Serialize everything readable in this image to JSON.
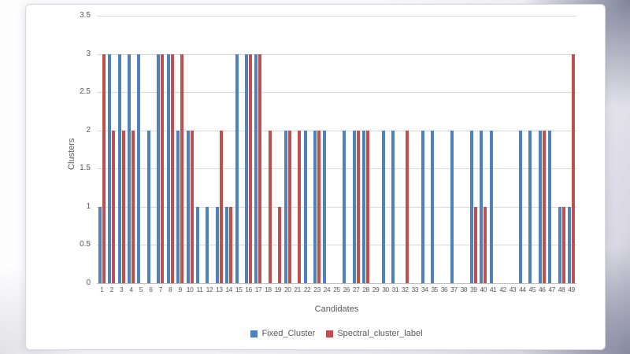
{
  "chart_data": {
    "type": "bar",
    "title": "",
    "xlabel": "Candidates",
    "ylabel": "Clusters",
    "ylim": [
      0,
      3.5
    ],
    "ytick_labels": [
      "3.5",
      "3",
      "2.5",
      "2",
      "1.5",
      "1",
      "0.5",
      "0"
    ],
    "grid": true,
    "legend_position": "bottom",
    "categories": [
      "1",
      "2",
      "3",
      "4",
      "5",
      "6",
      "7",
      "8",
      "9",
      "10",
      "11",
      "12",
      "13",
      "14",
      "15",
      "16",
      "17",
      "18",
      "19",
      "20",
      "21",
      "22",
      "23",
      "24",
      "25",
      "26",
      "27",
      "28",
      "29",
      "30",
      "31",
      "32",
      "33",
      "34",
      "35",
      "36",
      "37",
      "38",
      "39",
      "40",
      "41",
      "42",
      "43",
      "44",
      "45",
      "46",
      "47",
      "48",
      "49"
    ],
    "series": [
      {
        "name": "Fixed_Cluster",
        "color": "#4F81BD",
        "values": [
          1,
          3,
          3,
          3,
          3,
          2,
          3,
          3,
          2,
          2,
          1,
          1,
          1,
          1,
          3,
          3,
          3,
          0,
          0,
          2,
          0,
          2,
          2,
          2,
          0,
          2,
          2,
          2,
          0,
          2,
          2,
          0,
          0,
          2,
          2,
          0,
          2,
          0,
          2,
          2,
          2,
          0,
          0,
          2,
          2,
          2,
          2,
          1,
          1
        ]
      },
      {
        "name": "Spectral_cluster_label",
        "color": "#C0504D",
        "values": [
          3,
          2,
          2,
          2,
          0,
          0,
          3,
          3,
          3,
          2,
          0,
          0,
          2,
          1,
          0,
          3,
          3,
          2,
          1,
          2,
          2,
          0,
          2,
          0,
          0,
          0,
          2,
          2,
          0,
          0,
          0,
          2,
          0,
          0,
          0,
          0,
          0,
          0,
          1,
          1,
          0,
          0,
          0,
          0,
          0,
          2,
          0,
          1,
          3
        ]
      }
    ]
  }
}
